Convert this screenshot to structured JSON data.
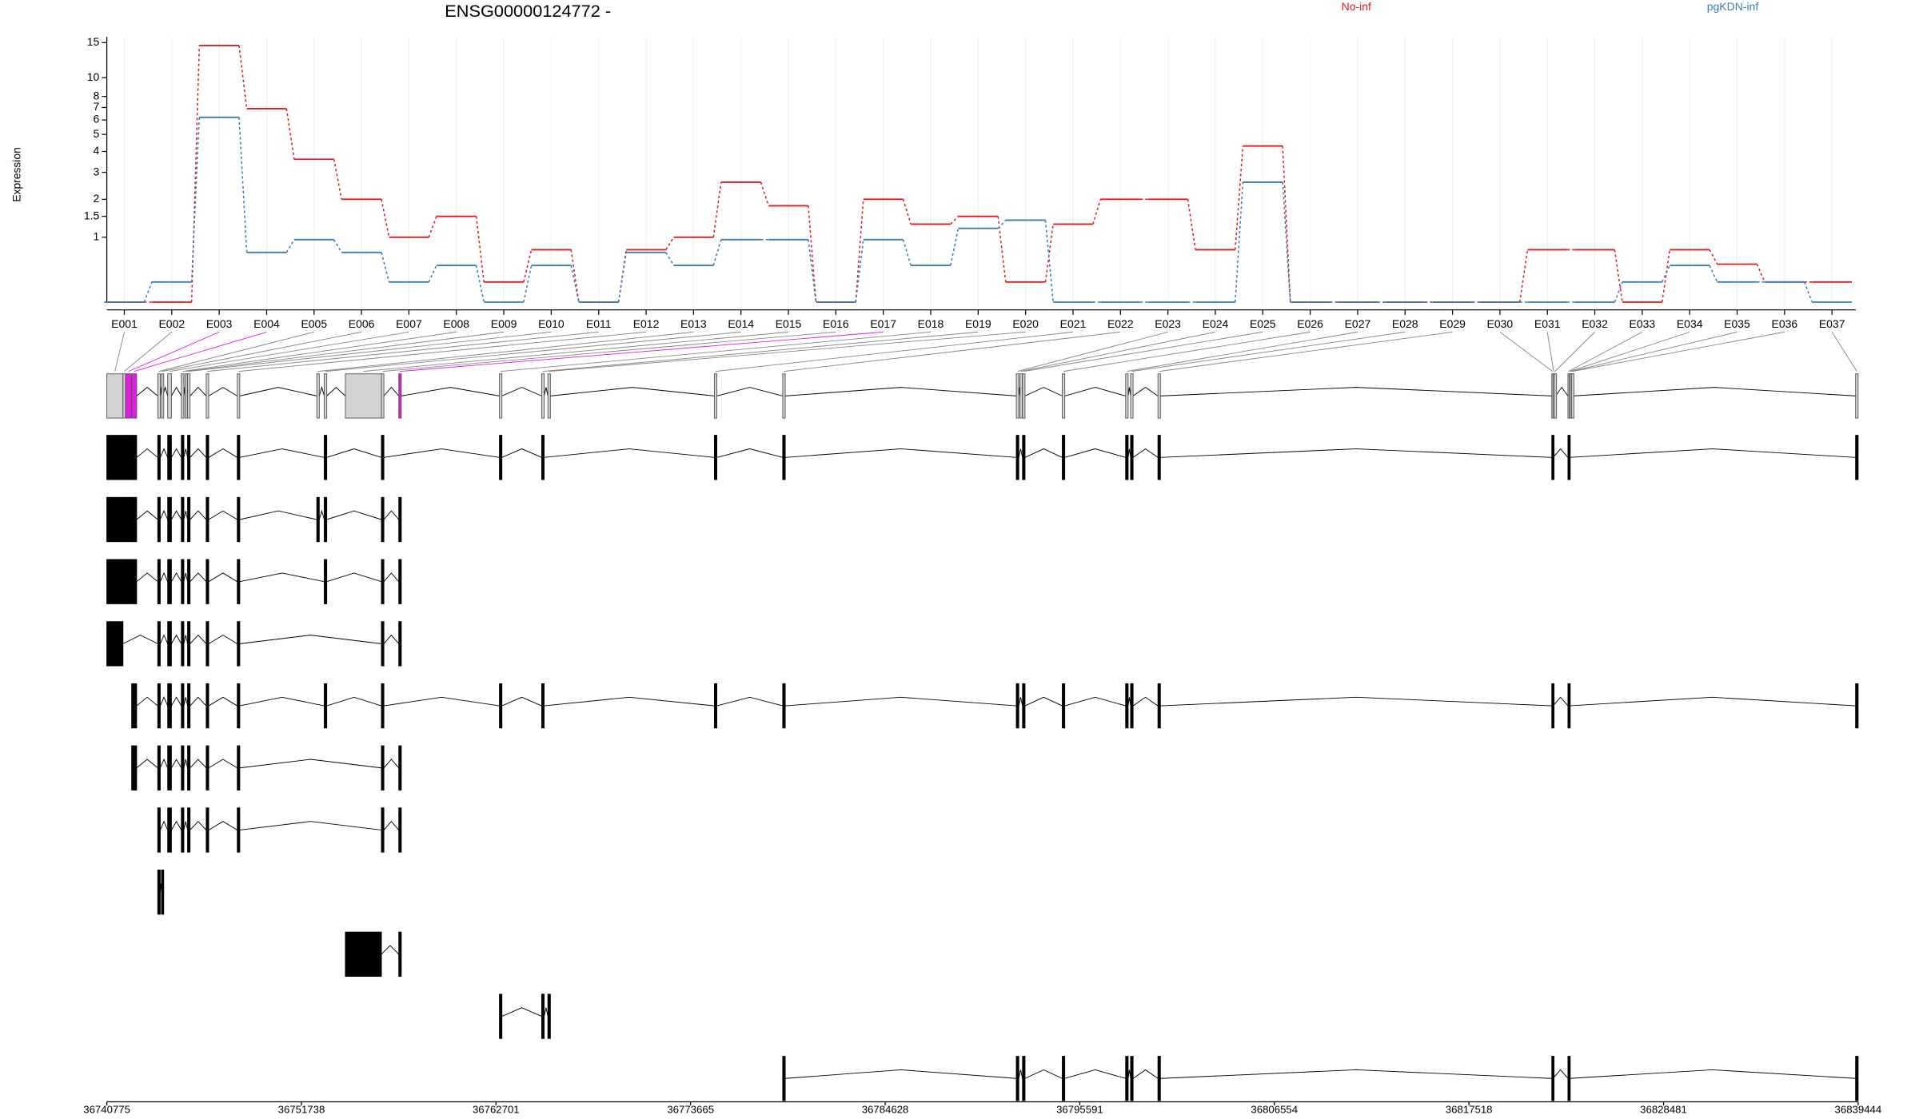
{
  "chart_data": [
    {
      "type": "line",
      "title": "ENSG00000124772 -",
      "ylabel": "Expression",
      "yscale": "log1p",
      "categories": [
        "E001",
        "E002",
        "E003",
        "E004",
        "E005",
        "E006",
        "E007",
        "E008",
        "E009",
        "E010",
        "E011",
        "E012",
        "E013",
        "E014",
        "E015",
        "E016",
        "E017",
        "E018",
        "E019",
        "E020",
        "E021",
        "E022",
        "E023",
        "E024",
        "E025",
        "E026",
        "E027",
        "E028",
        "E029",
        "E030",
        "E031",
        "E032",
        "E033",
        "E034",
        "E035",
        "E036",
        "E037"
      ],
      "series": [
        {
          "name": "No-inf",
          "color": "#e41a1c",
          "values": [
            0,
            0,
            14.5,
            6.9,
            3.6,
            2,
            1,
            1.5,
            0.24,
            0.75,
            0,
            0.75,
            1,
            2.6,
            1.8,
            0,
            2,
            1.3,
            1.5,
            0.24,
            1.3,
            2,
            2,
            0.75,
            4.3,
            0,
            0,
            0,
            0,
            0,
            0.75,
            0.75,
            0,
            0.75,
            0.5,
            0.24,
            0.24
          ]
        },
        {
          "name": "pgKDN-inf",
          "color": "#377eb8",
          "values": [
            0,
            0.24,
            6.2,
            0.7,
            0.95,
            0.7,
            0.24,
            0.48,
            0,
            0.48,
            0,
            0.7,
            0.48,
            0.95,
            0.95,
            0,
            0.95,
            0.48,
            1.2,
            1.4,
            0,
            0,
            0,
            0,
            2.6,
            0,
            0,
            0,
            0,
            0,
            0,
            0,
            0.24,
            0.48,
            0.24,
            0.24,
            0
          ]
        }
      ],
      "ylim": [
        0,
        16
      ],
      "yticks": [
        1,
        1.5,
        2,
        3,
        4,
        5,
        6,
        7,
        8,
        10,
        15
      ],
      "grid": true
    },
    {
      "type": "gene-model",
      "exons": [
        [
          36740775,
          36741685
        ],
        [
          36741685,
          36741825
        ],
        [
          36741825,
          36742175
        ],
        [
          36742175,
          36742455
        ],
        [
          36743645,
          36743785
        ],
        [
          36743855,
          36743925
        ],
        [
          36744205,
          36744415
        ],
        [
          36744975,
          36745115
        ],
        [
          36745185,
          36745255
        ],
        [
          36745325,
          36745465
        ],
        [
          36746375,
          36746515
        ],
        [
          36748125,
          36748265
        ],
        [
          36752605,
          36752745
        ],
        [
          36753025,
          36753165
        ],
        [
          36754215,
          36756245
        ],
        [
          36756245,
          36756385
        ],
        [
          36757225,
          36757365
        ],
        [
          36762895,
          36763035
        ],
        [
          36765275,
          36765415
        ],
        [
          36765625,
          36765765
        ],
        [
          36775005,
          36775145
        ],
        [
          36778855,
          36778995
        ],
        [
          36792015,
          36792155
        ],
        [
          36792225,
          36792295
        ],
        [
          36792365,
          36792505
        ],
        [
          36794605,
          36794745
        ],
        [
          36798175,
          36798315
        ],
        [
          36798455,
          36798595
        ],
        [
          36799995,
          36800135
        ],
        [
          36822185,
          36822255
        ],
        [
          36822255,
          36822325
        ],
        [
          36822325,
          36822395
        ],
        [
          36823095,
          36823165
        ],
        [
          36823165,
          36823235
        ],
        [
          36823235,
          36823305
        ],
        [
          36823305,
          36823375
        ],
        [
          36839300,
          36839444
        ]
      ],
      "highlight": [
        false,
        false,
        true,
        true,
        false,
        false,
        false,
        false,
        false,
        false,
        false,
        false,
        false,
        false,
        false,
        false,
        true,
        false,
        false,
        false,
        false,
        false,
        false,
        false,
        false,
        false,
        false,
        false,
        false,
        false,
        false,
        false,
        false,
        false,
        false,
        false,
        false
      ],
      "highlight_color": "#e020e0",
      "transcripts": [
        [
          0,
          1,
          2,
          3,
          4,
          6,
          7,
          9,
          10,
          11,
          13,
          15,
          17,
          18,
          20,
          21,
          22,
          24,
          25,
          26,
          27,
          28,
          29,
          32,
          36
        ],
        [
          0,
          1,
          2,
          3,
          4,
          6,
          7,
          9,
          10,
          11,
          12,
          13,
          15,
          16
        ],
        [
          0,
          1,
          2,
          3,
          4,
          6,
          7,
          9,
          10,
          11,
          13,
          15,
          16
        ],
        [
          0,
          4,
          6,
          7,
          9,
          10,
          11,
          15,
          16
        ],
        [
          3,
          4,
          6,
          7,
          9,
          10,
          11,
          13,
          15,
          17,
          18,
          20,
          21,
          22,
          24,
          25,
          26,
          27,
          28,
          29,
          32,
          36
        ],
        [
          3,
          4,
          6,
          7,
          9,
          10,
          11,
          15,
          16
        ],
        [
          4,
          6,
          7,
          9,
          10,
          11,
          15,
          16
        ],
        [
          4,
          5
        ],
        [
          14,
          16
        ],
        [
          17,
          18,
          19
        ],
        [
          21,
          22,
          24,
          25,
          26,
          27,
          28,
          29,
          32,
          36
        ]
      ],
      "xlim": [
        36740775,
        36839444
      ],
      "xticks": [
        36740775,
        36751738,
        36762701,
        36773665,
        36784628,
        36795591,
        36806554,
        36817518,
        36828481,
        36839444
      ]
    }
  ]
}
